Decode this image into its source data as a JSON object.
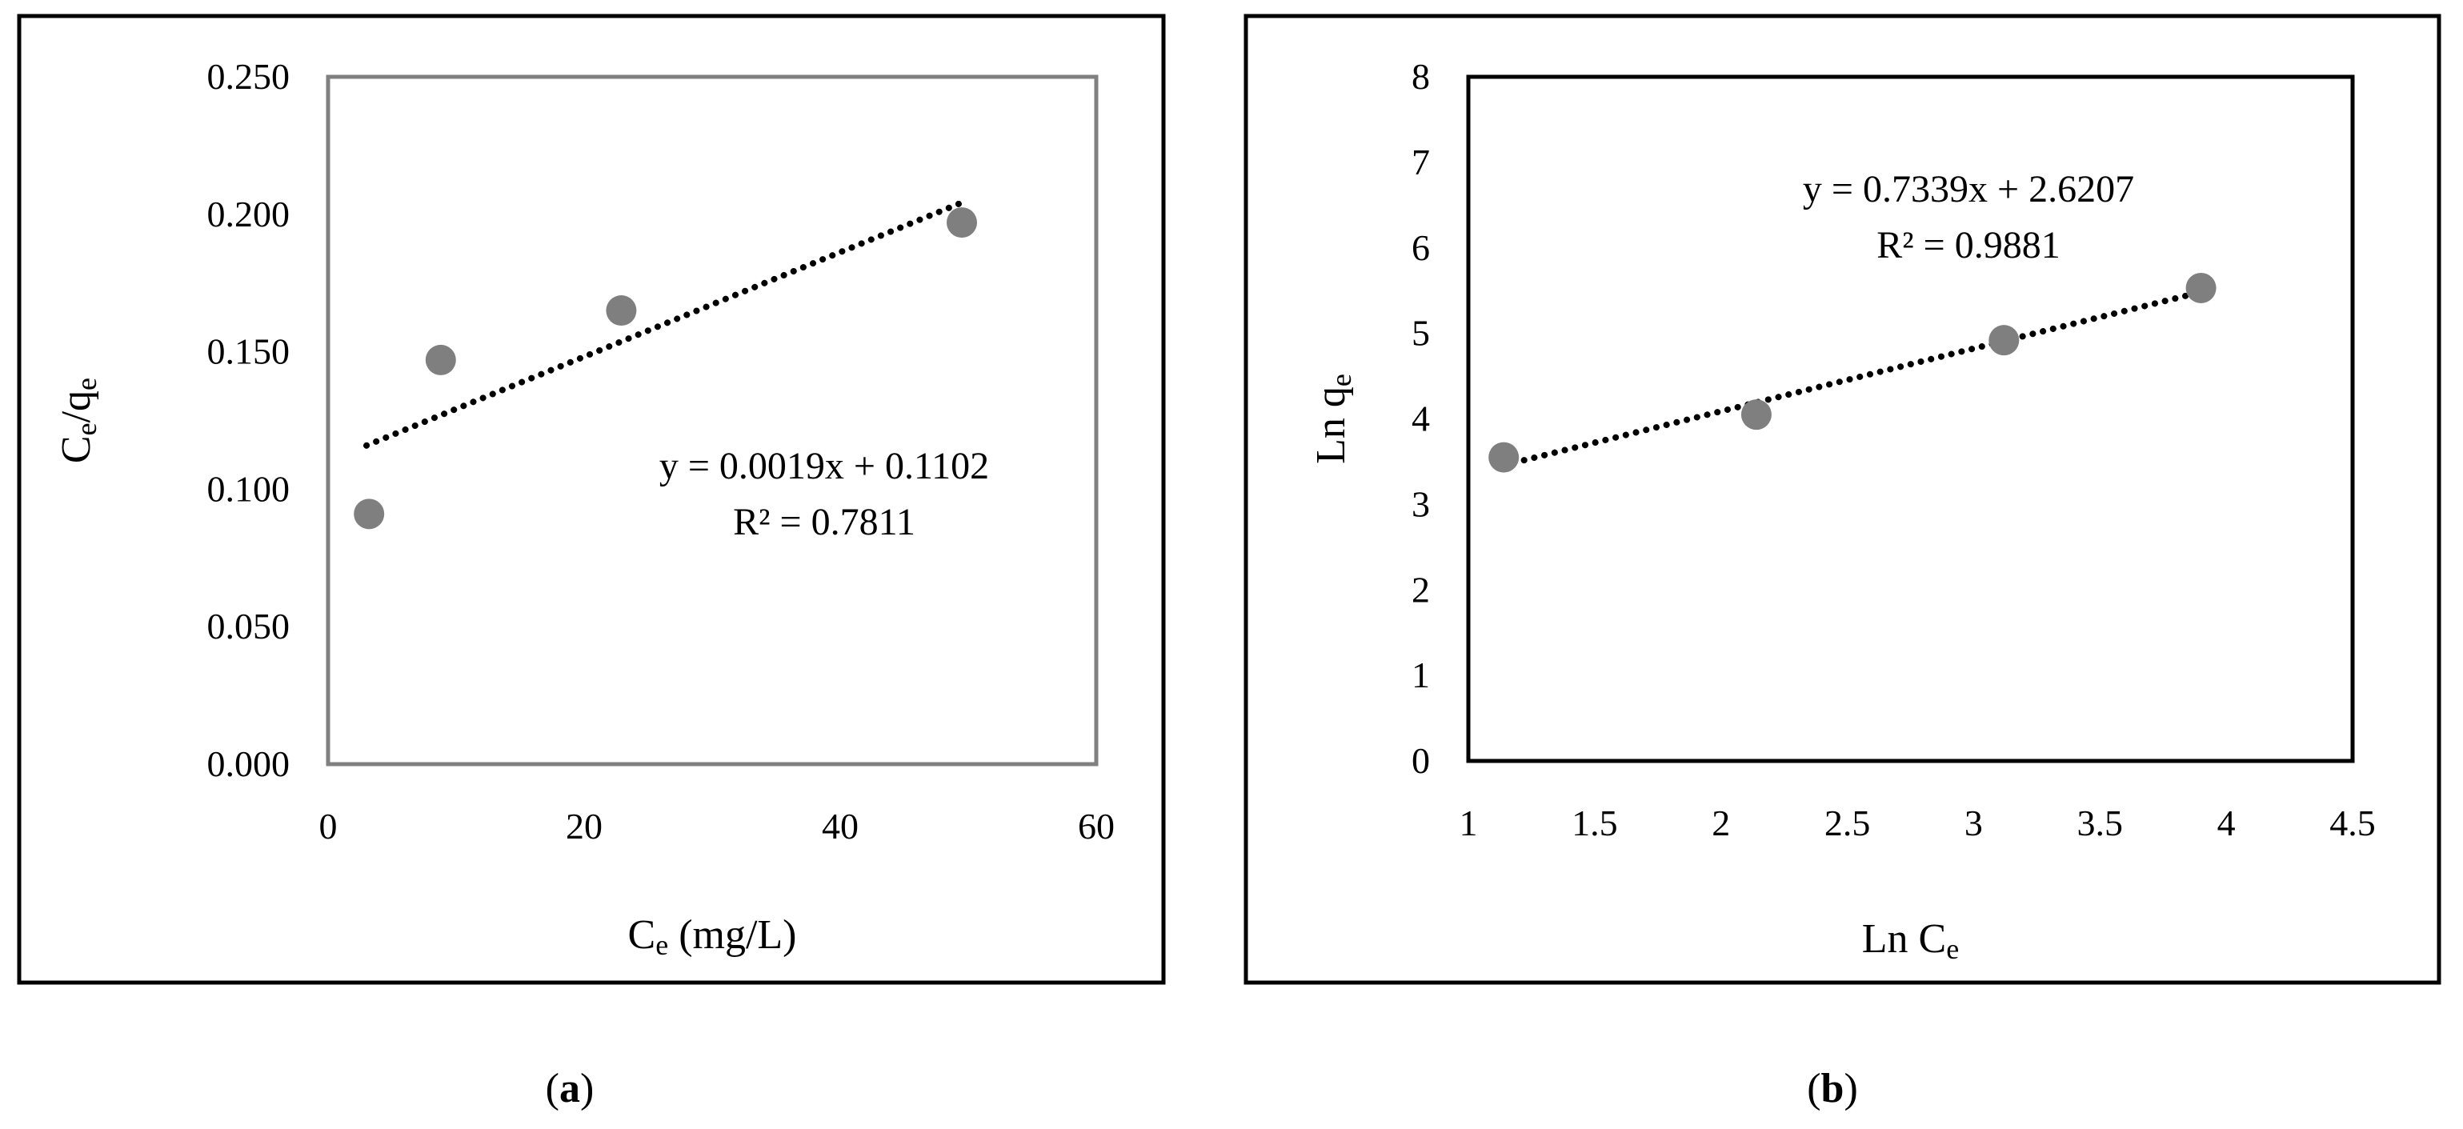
{
  "chart_data": [
    {
      "type": "scatter",
      "panel_label": "a",
      "xlabel": {
        "main": "C",
        "sub": "e",
        "rest": " (mg/L)"
      },
      "ylabel": {
        "main": "C",
        "sub1": "e",
        "mid": "/q",
        "sub2": "e"
      },
      "xlim": [
        0,
        60
      ],
      "ylim": [
        0.0,
        0.25
      ],
      "xticks": [
        0,
        20,
        40,
        60
      ],
      "yticks": [
        "0.000",
        "0.050",
        "0.100",
        "0.150",
        "0.200",
        "0.250"
      ],
      "points": [
        {
          "x": 3.2,
          "y": 0.091
        },
        {
          "x": 8.8,
          "y": 0.147
        },
        {
          "x": 22.9,
          "y": 0.165
        },
        {
          "x": 49.5,
          "y": 0.197
        }
      ],
      "trendline": {
        "slope": 0.0019,
        "intercept": 0.1102,
        "x_range": [
          3.0,
          49.5
        ]
      },
      "equation": "y = 0.0019x + 0.1102",
      "r2_label": "R² = 0.7811",
      "colors": {
        "marker": "#7f7f7f",
        "trendline": "#000000",
        "plot_border": "#808080",
        "frame": "#000000"
      }
    },
    {
      "type": "scatter",
      "panel_label": "b",
      "xlabel": {
        "main": "Ln C",
        "sub": "e",
        "rest": ""
      },
      "ylabel": {
        "main": "Ln q",
        "sub1": "e",
        "mid": "",
        "sub2": ""
      },
      "xlim": [
        1.0,
        4.5
      ],
      "ylim": [
        0,
        8
      ],
      "xticks": [
        "1",
        "1.5",
        "2",
        "2.5",
        "3",
        "3.5",
        "4",
        "4.5"
      ],
      "yticks": [
        "0",
        "1",
        "2",
        "3",
        "4",
        "5",
        "6",
        "7",
        "8"
      ],
      "points": [
        {
          "x": 1.14,
          "y": 3.55
        },
        {
          "x": 2.14,
          "y": 4.05
        },
        {
          "x": 3.12,
          "y": 4.92
        },
        {
          "x": 3.9,
          "y": 5.53
        }
      ],
      "trendline": {
        "slope": 0.7339,
        "intercept": 2.6207,
        "x_range": [
          1.14,
          3.9
        ]
      },
      "equation": "y = 0.7339x + 2.6207",
      "r2_label": "R² = 0.9881",
      "colors": {
        "marker": "#7f7f7f",
        "trendline": "#000000",
        "plot_border": "#000000",
        "frame": "#000000"
      }
    }
  ]
}
